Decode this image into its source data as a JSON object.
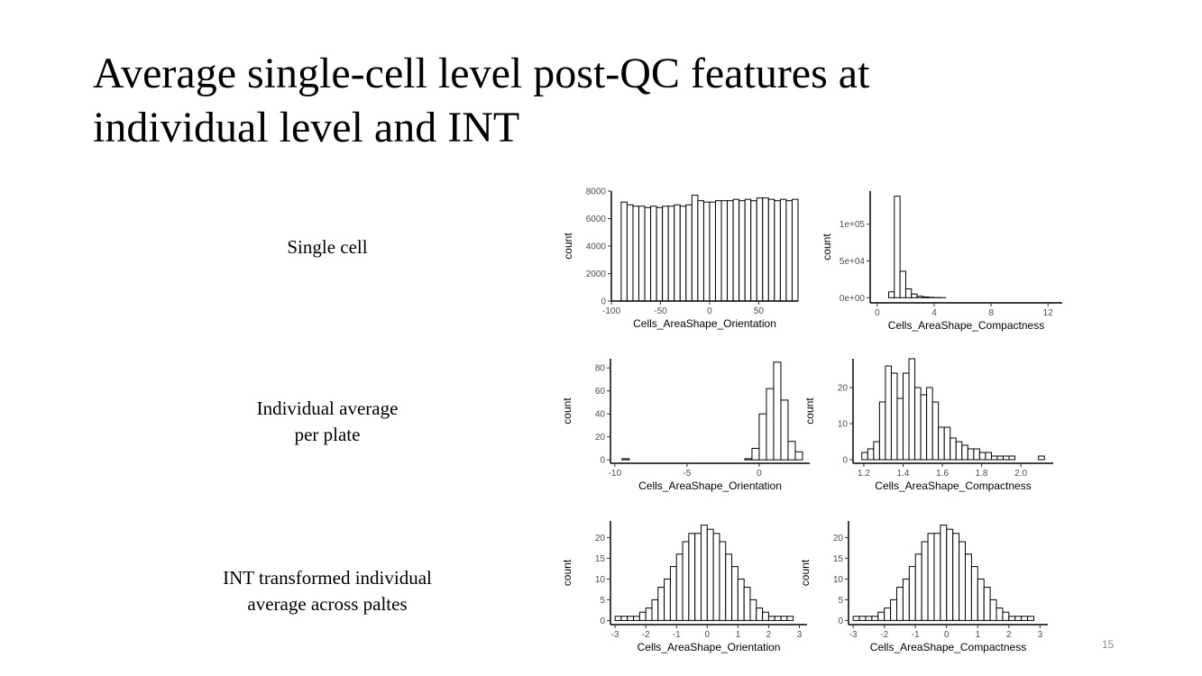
{
  "slide": {
    "title_lines": [
      "Average single-cell level post-QC features at",
      "individual level and INT"
    ],
    "row_labels": [
      [
        "Single cell"
      ],
      [
        "Individual average",
        "per plate"
      ],
      [
        "INT transformed individual",
        "average across paltes"
      ]
    ],
    "page_number": "15"
  },
  "chart_data": [
    {
      "type": "histogram",
      "xlabel": "Cells_AreaShape_Orientation",
      "ylabel": "count",
      "bins": [
        -90,
        -84,
        -78,
        -72,
        -66,
        -60,
        -54,
        -48,
        -42,
        -36,
        -30,
        -24,
        -18,
        -12,
        -6,
        0,
        6,
        12,
        18,
        24,
        30,
        36,
        42,
        48,
        54,
        60,
        66,
        72,
        78,
        84,
        90
      ],
      "values": [
        7200,
        7000,
        6900,
        6900,
        6800,
        6900,
        6800,
        6900,
        6900,
        7000,
        6900,
        7000,
        7700,
        7300,
        7200,
        7200,
        7300,
        7300,
        7300,
        7400,
        7300,
        7400,
        7300,
        7500,
        7500,
        7400,
        7300,
        7400,
        7300,
        7400
      ],
      "xlim": [
        -100,
        90
      ],
      "ylim": [
        0,
        8000
      ],
      "xticks": [
        -100,
        -50,
        0,
        50
      ],
      "yticks": [
        0,
        2000,
        4000,
        6000,
        8000
      ],
      "color": "#ffffff"
    },
    {
      "type": "histogram",
      "xlabel": "Cells_AreaShape_Compactness",
      "ylabel": "count",
      "bins": [
        0,
        0.4,
        0.8,
        1.2,
        1.6,
        2,
        2.4,
        2.8,
        3.2,
        3.6,
        4,
        4.4,
        4.8,
        5.2,
        5.6,
        6,
        6.4,
        6.8,
        7.2,
        7.6,
        8,
        8.4,
        8.8,
        9.2,
        9.6,
        10,
        10.4,
        10.8,
        11.2,
        11.6,
        12
      ],
      "values": [
        0,
        0,
        8000,
        138000,
        36000,
        12000,
        5000,
        2000,
        1000,
        500,
        200,
        100,
        0,
        0,
        0,
        0,
        0,
        0,
        0,
        0,
        0,
        0,
        0,
        0,
        0,
        0,
        0,
        0,
        0,
        0
      ],
      "xlim": [
        -0.5,
        13
      ],
      "ylim": [
        -7000,
        145000
      ],
      "xticks": [
        0,
        4,
        8,
        12
      ],
      "yticks": [
        {
          "value": 0,
          "label": "0e+00"
        },
        {
          "value": 50000,
          "label": "5e+04"
        },
        {
          "value": 100000,
          "label": "1e+05"
        }
      ],
      "color": "#ffffff"
    },
    {
      "type": "histogram",
      "xlabel": "Cells_AreaShape_Orientation",
      "ylabel": "count",
      "bins": [
        -10,
        -9.5,
        -9,
        -8.5,
        -8,
        -7.5,
        -7,
        -6.5,
        -6,
        -5.5,
        -5,
        -4.5,
        -4,
        -3.5,
        -3,
        -2.5,
        -2,
        -1.5,
        -1,
        -0.5,
        0,
        0.5,
        1,
        1.5,
        2,
        2.5,
        3
      ],
      "values": [
        0,
        1,
        0,
        0,
        0,
        0,
        0,
        0,
        0,
        0,
        0,
        0,
        0,
        0,
        0,
        0,
        0,
        0,
        1,
        10,
        40,
        62,
        85,
        52,
        16,
        7
      ],
      "xlim": [
        -10.3,
        3.5
      ],
      "ylim": [
        -3,
        88
      ],
      "xticks": [
        -10,
        -5,
        0
      ],
      "yticks": [
        0,
        20,
        40,
        60,
        80
      ],
      "color": "#ffffff"
    },
    {
      "type": "histogram",
      "xlabel": "Cells_AreaShape_Compactness",
      "ylabel": "count",
      "bins": [
        1.19,
        1.22,
        1.25,
        1.28,
        1.31,
        1.34,
        1.37,
        1.4,
        1.43,
        1.46,
        1.49,
        1.52,
        1.55,
        1.58,
        1.61,
        1.64,
        1.67,
        1.7,
        1.73,
        1.76,
        1.79,
        1.82,
        1.85,
        1.88,
        1.91,
        1.94,
        1.97,
        2,
        2.03,
        2.06,
        2.09,
        2.12
      ],
      "values": [
        2,
        3,
        5,
        16,
        26,
        24,
        17,
        24,
        28,
        20,
        18,
        20,
        16,
        9,
        9,
        6,
        5,
        4,
        3,
        3,
        2,
        2,
        1,
        1,
        1,
        1,
        0,
        0,
        0,
        0,
        1
      ],
      "xlim": [
        1.145,
        2.165
      ],
      "ylim": [
        -1,
        28
      ],
      "xticks": [
        1.2,
        1.4,
        1.6,
        1.8,
        {
          "value": 2,
          "label": "2.0"
        }
      ],
      "yticks": [
        0,
        10,
        20
      ],
      "color": "#ffffff"
    },
    {
      "type": "histogram",
      "xlabel": "Cells_AreaShape_Orientation",
      "ylabel": "count",
      "bins": [
        -3,
        -2.8,
        -2.6,
        -2.4,
        -2.2,
        -2,
        -1.8,
        -1.6,
        -1.4,
        -1.2,
        -1,
        -0.8,
        -0.6,
        -0.4,
        -0.2,
        0,
        0.2,
        0.4,
        0.6,
        0.8,
        1,
        1.2,
        1.4,
        1.6,
        1.8,
        2,
        2.2,
        2.4,
        2.6,
        2.8,
        3
      ],
      "values": [
        1,
        1,
        1,
        1,
        2,
        3,
        5,
        8,
        10,
        13,
        16,
        19,
        21,
        21,
        23,
        22,
        21,
        19,
        16,
        13,
        10,
        8,
        5,
        3,
        2,
        1,
        1,
        1,
        1,
        0
      ],
      "xlim": [
        -3.15,
        3.25
      ],
      "ylim": [
        -1,
        24
      ],
      "xticks": [
        -3,
        -2,
        -1,
        0,
        1,
        2,
        3
      ],
      "yticks": [
        0,
        5,
        10,
        15,
        20
      ],
      "color": "#ffffff"
    },
    {
      "type": "histogram",
      "xlabel": "Cells_AreaShape_Compactness",
      "ylabel": "count",
      "bins": [
        -3,
        -2.8,
        -2.6,
        -2.4,
        -2.2,
        -2,
        -1.8,
        -1.6,
        -1.4,
        -1.2,
        -1,
        -0.8,
        -0.6,
        -0.4,
        -0.2,
        0,
        0.2,
        0.4,
        0.6,
        0.8,
        1,
        1.2,
        1.4,
        1.6,
        1.8,
        2,
        2.2,
        2.4,
        2.6,
        2.8,
        3
      ],
      "values": [
        1,
        1,
        1,
        1,
        2,
        3,
        5,
        8,
        10,
        13,
        16,
        19,
        21,
        21,
        23,
        22,
        21,
        19,
        16,
        13,
        10,
        8,
        5,
        3,
        2,
        1,
        1,
        1,
        1,
        0
      ],
      "xlim": [
        -3.15,
        3.25
      ],
      "ylim": [
        -1,
        24
      ],
      "xticks": [
        -3,
        -2,
        -1,
        0,
        1,
        2,
        3
      ],
      "yticks": [
        0,
        5,
        10,
        15,
        20
      ],
      "color": "#ffffff"
    }
  ]
}
